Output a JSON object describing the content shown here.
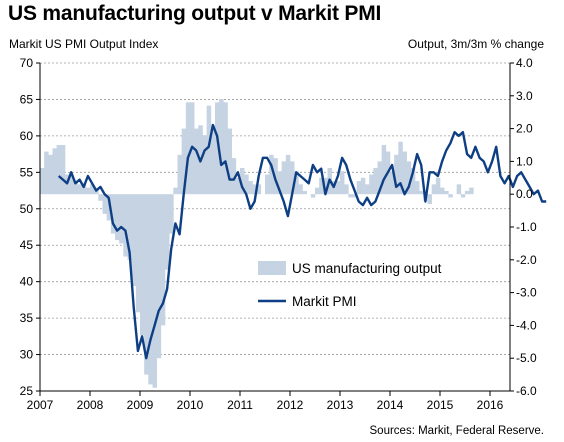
{
  "title": "US manufacturing output v Markit PMI",
  "left_axis_label": "Markit US PMI Output Index",
  "right_axis_label": "Output, 3m/3m % change",
  "source": "Sources: Markit, Federal Reserve.",
  "chart_data": {
    "type": "bar+line",
    "x_axis": {
      "start_year": 2007,
      "end_year": 2016.4,
      "tick_labels": [
        "2007",
        "2008",
        "2009",
        "2010",
        "2011",
        "2012",
        "2013",
        "2014",
        "2015",
        "2016"
      ]
    },
    "left_axis": {
      "min": 25,
      "max": 70,
      "ticks": [
        70,
        65,
        60,
        55,
        50,
        45,
        40,
        35,
        30,
        25
      ]
    },
    "right_axis": {
      "min": -6.0,
      "max": 4.0,
      "ticks": [
        "4.0",
        "3.0",
        "2.0",
        "1.0",
        "0.0",
        "-1.0",
        "-2.0",
        "-3.0",
        "-4.0",
        "-5.0",
        "-6.0"
      ]
    },
    "grid": true,
    "legend": {
      "placement": "center-right",
      "entries": [
        "US manufacturing output",
        "Markit PMI"
      ]
    },
    "colors": {
      "bars": "#c5d3e2",
      "line": "#0e3f85",
      "grid": "#9a9a9a"
    },
    "series": [
      {
        "name": "US manufacturing output",
        "kind": "bar",
        "axis": "right",
        "start": "2007-01",
        "values": [
          0.8,
          1.3,
          1.2,
          1.4,
          1.5,
          1.5,
          0.6,
          0.6,
          0.4,
          0.3,
          0.3,
          0.2,
          0.3,
          0.2,
          -0.2,
          -0.6,
          -0.8,
          -1.2,
          -1.4,
          -1.5,
          -1.9,
          -2.0,
          -2.8,
          -3.6,
          -4.3,
          -5.5,
          -5.8,
          -5.9,
          -5.0,
          -4.0,
          -2.3,
          -1.2,
          0.2,
          1.2,
          2.0,
          2.8,
          2.8,
          2.0,
          2.1,
          1.8,
          2.7,
          2.1,
          2.8,
          2.9,
          2.8,
          2.0,
          1.1,
          0.5,
          0.8,
          0.6,
          0.4,
          0.3,
          0.3,
          0.0,
          0.6,
          1.2,
          1.1,
          0.7,
          1.0,
          1.2,
          1.0,
          0.7,
          0.3,
          0.1,
          0.0,
          -0.1,
          0.2,
          0.5,
          0.5,
          0.8,
          0.4,
          0.4,
          0.7,
          0.3,
          -0.1,
          -0.1,
          0.4,
          0.5,
          0.3,
          0.6,
          0.8,
          1.0,
          1.5,
          1.3,
          0.7,
          1.2,
          1.6,
          1.3,
          1.0,
          0.8,
          0.4,
          0.1,
          -0.2,
          -0.3,
          0.3,
          0.5,
          0.2,
          0.1,
          -0.1,
          0.0,
          0.3,
          -0.1,
          0.1,
          0.2
        ]
      },
      {
        "name": "Markit PMI",
        "kind": "line",
        "axis": "left",
        "start": "2007-05",
        "values": [
          54.5,
          54.0,
          53.5,
          55.0,
          53.5,
          54.0,
          53.0,
          54.5,
          53.5,
          52.5,
          53.0,
          52.0,
          51.5,
          48.0,
          47.0,
          47.5,
          47.0,
          44.0,
          36.5,
          30.5,
          32.5,
          29.5,
          32.0,
          34.0,
          36.0,
          37.0,
          39.0,
          44.5,
          48.0,
          46.5,
          52.0,
          57.0,
          58.5,
          58.0,
          56.5,
          58.0,
          58.5,
          61.5,
          60.0,
          56.0,
          56.5,
          54.0,
          54.0,
          55.0,
          53.0,
          52.0,
          50.0,
          51.0,
          54.5,
          57.0,
          57.0,
          56.0,
          54.0,
          52.5,
          51.0,
          49.0,
          52.0,
          55.0,
          54.5,
          54.0,
          53.5,
          56.0,
          55.0,
          55.5,
          52.0,
          54.0,
          53.0,
          54.5,
          57.0,
          56.0,
          54.0,
          52.5,
          51.0,
          50.5,
          51.5,
          50.5,
          51.0,
          52.5,
          54.0,
          55.0,
          56.0,
          53.0,
          53.5,
          52.0,
          53.0,
          55.0,
          57.5,
          56.0,
          51.0,
          55.0,
          55.0,
          54.5,
          56.5,
          58.0,
          59.0,
          60.5,
          60.0,
          60.5,
          57.5,
          57.0,
          58.5,
          57.0,
          56.5,
          55.0,
          56.5,
          58.5,
          54.5,
          53.5,
          54.5,
          53.0,
          54.5,
          55.0,
          54.0,
          53.0,
          52.0,
          52.5,
          51.0,
          51.0
        ]
      }
    ]
  }
}
